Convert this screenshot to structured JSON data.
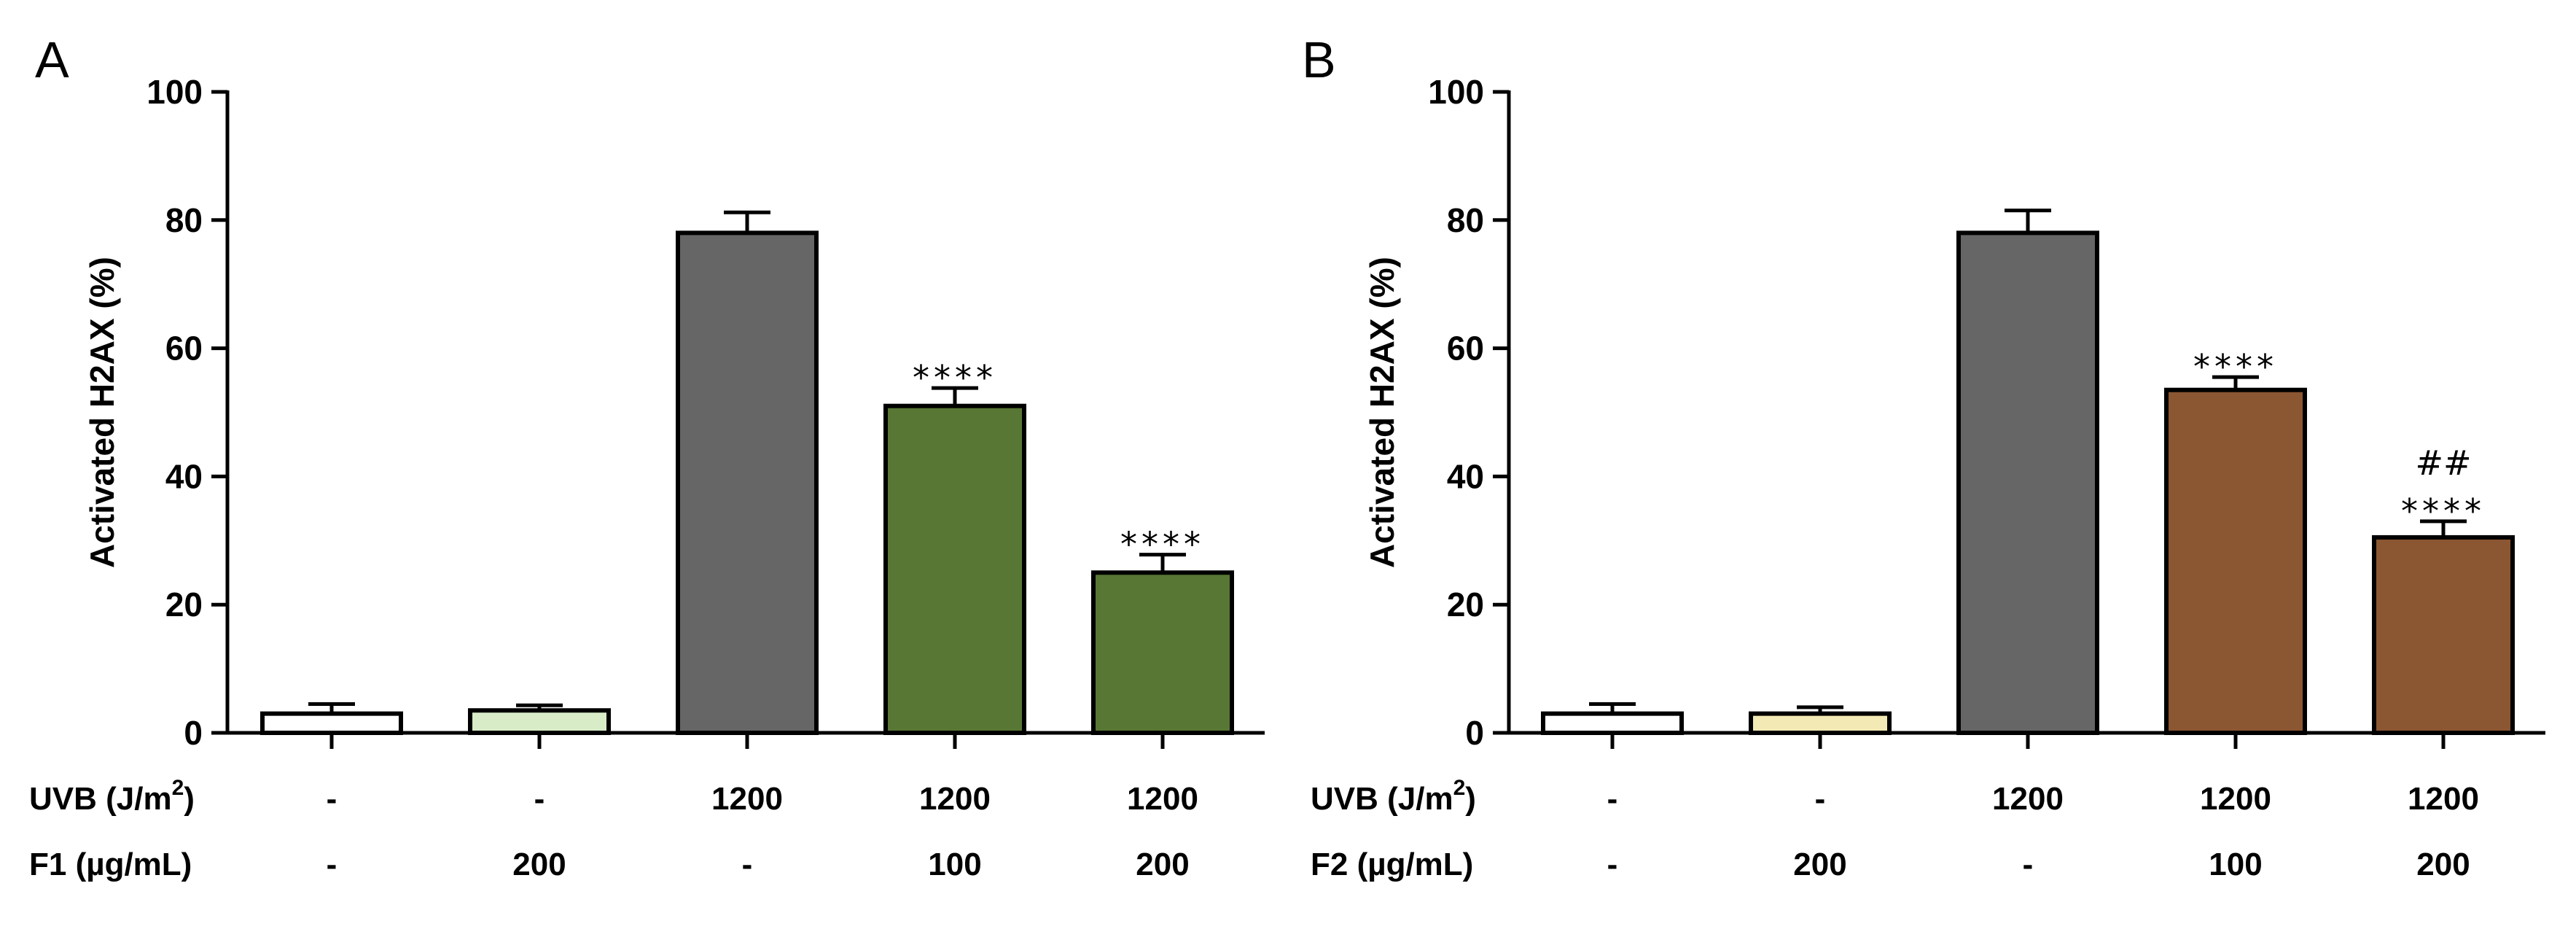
{
  "chart_data": [
    {
      "panel": "A",
      "type": "bar",
      "ylabel": "Activated H2AX (%)",
      "ylim": [
        0,
        100
      ],
      "yticks": [
        0,
        20,
        40,
        60,
        80,
        100
      ],
      "values": [
        3,
        3.5,
        78,
        51,
        25
      ],
      "errors": [
        1.5,
        0.8,
        3.2,
        2.8,
        2.8
      ],
      "colors": [
        "#ffffff",
        "#d8ecc8",
        "#666666",
        "#587735",
        "#587735"
      ],
      "significance": [
        [],
        [],
        [],
        [
          "****"
        ],
        [
          "****"
        ]
      ],
      "condition_rows": [
        {
          "label": "UVB (J/m",
          "sup": "2",
          "close": ")",
          "values": [
            "-",
            "-",
            "1200",
            "1200",
            "1200"
          ]
        },
        {
          "label": "F1 (µg/mL)",
          "sup": "",
          "close": "",
          "values": [
            "-",
            "200",
            "-",
            "100",
            "200"
          ]
        }
      ]
    },
    {
      "panel": "B",
      "type": "bar",
      "ylabel": "Activated H2AX (%)",
      "ylim": [
        0,
        100
      ],
      "yticks": [
        0,
        20,
        40,
        60,
        80,
        100
      ],
      "values": [
        3,
        3,
        78,
        53.5,
        30.5
      ],
      "errors": [
        1.5,
        1.0,
        3.5,
        2.0,
        2.5
      ],
      "colors": [
        "#ffffff",
        "#f2e9b4",
        "#666666",
        "#8b5632",
        "#8b5632"
      ],
      "significance": [
        [],
        [],
        [],
        [
          "****"
        ],
        [
          "##",
          "****"
        ]
      ],
      "condition_rows": [
        {
          "label": "UVB (J/m",
          "sup": "2",
          "close": ")",
          "values": [
            "-",
            "-",
            "1200",
            "1200",
            "1200"
          ]
        },
        {
          "label": "F2 (µg/mL)",
          "sup": "",
          "close": "",
          "values": [
            "-",
            "200",
            "-",
            "100",
            "200"
          ]
        }
      ]
    }
  ]
}
